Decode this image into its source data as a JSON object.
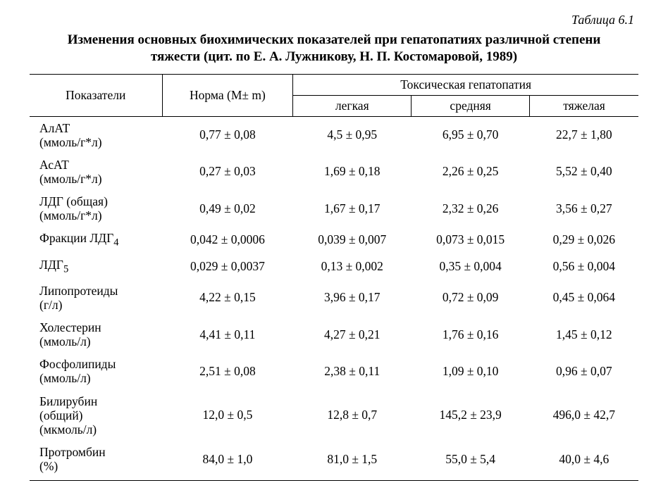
{
  "tableLabel": "Таблица 6.1",
  "captionLine1": "Изменения основных биохимических показателей при гепатопатиях различной степени",
  "captionLine2": "тяжести (цит. по Е. А. Лужникову, Н. П. Костомаровой, 1989)",
  "headers": {
    "param": "Показатели",
    "norm": "Норма (M± m)",
    "group": "Токсическая гепатопатия",
    "mild": "легкая",
    "moderate": "средняя",
    "severe": "тяжелая"
  },
  "rows": [
    {
      "param": "АлАТ<br>(ммоль/г*л)",
      "norm": "0,77 ± 0,08",
      "mild": "4,5 ± 0,95",
      "moderate": "6,95 ± 0,70",
      "severe": "22,7 ± 1,80"
    },
    {
      "param": "АсАТ<br>(ммоль/г*л)",
      "norm": "0,27 ± 0,03",
      "mild": "1,69 ± 0,18",
      "moderate": "2,26 ± 0,25",
      "severe": "5,52 ± 0,40"
    },
    {
      "param": "ЛДГ (общая)<br>(ммоль/г*л)",
      "norm": "0,49 ± 0,02",
      "mild": "1,67 ± 0,17",
      "moderate": "2,32 ± 0,26",
      "severe": "3,56 ± 0,27"
    },
    {
      "param": "Фракции ЛДГ<sub>4</sub>",
      "norm": "0,042 ± 0,0006",
      "mild": "0,039 ± 0,007",
      "moderate": "0,073 ± 0,015",
      "severe": "0,29 ± 0,026"
    },
    {
      "param": "ЛДГ<sub>5</sub>",
      "norm": "0,029 ± 0,0037",
      "mild": "0,13 ± 0,002",
      "moderate": "0,35 ± 0,004",
      "severe": "0,56 ± 0,004"
    },
    {
      "param": "Липопротеиды<br>(г/л)",
      "norm": "4,22 ± 0,15",
      "mild": "3,96 ± 0,17",
      "moderate": "0,72 ± 0,09",
      "severe": "0,45 ± 0,064"
    },
    {
      "param": "Холестерин<br>(ммоль/л)",
      "norm": "4,41 ± 0,11",
      "mild": "4,27 ± 0,21",
      "moderate": "1,76 ± 0,16",
      "severe": "1,45 ± 0,12"
    },
    {
      "param": "Фосфолипиды<br>(ммоль/л)",
      "norm": "2,51 ± 0,08",
      "mild": "2,38 ± 0,11",
      "moderate": "1,09 ± 0,10",
      "severe": "0,96 ± 0,07"
    },
    {
      "param": "Билирубин<br>(общий)<br>(мкмоль/л)",
      "norm": "12,0 ± 0,5",
      "mild": "12,8 ± 0,7",
      "moderate": "145,2 ± 23,9",
      "severe": "496,0 ± 42,7"
    },
    {
      "param": "Протромбин<br>(%)",
      "norm": "84,0 ± 1,0",
      "mild": "81,0 ± 1,5",
      "moderate": "55,0 ± 5,4",
      "severe": "40,0 ± 4,6"
    }
  ]
}
